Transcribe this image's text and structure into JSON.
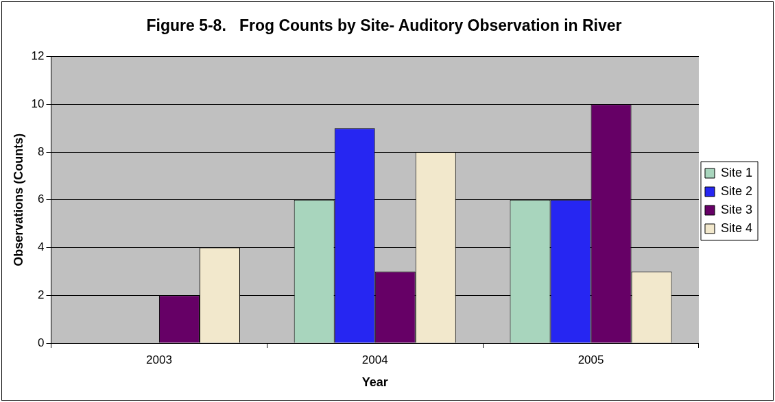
{
  "chart_data": {
    "type": "bar",
    "title": "Figure 5-8.   Frog Counts by Site- Auditory Observation in River",
    "xlabel": "Year",
    "ylabel": "Observations (Counts)",
    "categories": [
      "2003",
      "2004",
      "2005"
    ],
    "series": [
      {
        "name": "Site 1",
        "color": "#a8d5bd",
        "values": [
          0,
          6,
          6
        ]
      },
      {
        "name": "Site 2",
        "color": "#2626f2",
        "values": [
          0,
          9,
          6
        ]
      },
      {
        "name": "Site 3",
        "color": "#660066",
        "values": [
          2,
          3,
          10
        ]
      },
      {
        "name": "Site 4",
        "color": "#f2e8cc",
        "values": [
          4,
          8,
          3
        ]
      }
    ],
    "ylim": [
      0,
      12
    ],
    "yticks": [
      0,
      2,
      4,
      6,
      8,
      10,
      12
    ],
    "grid": "y",
    "legend": "right"
  }
}
